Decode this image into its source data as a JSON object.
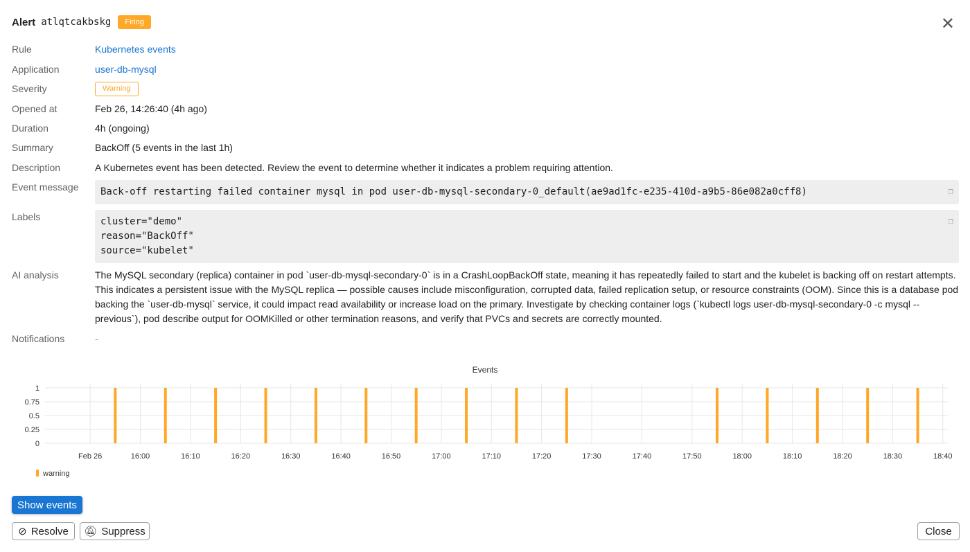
{
  "header": {
    "title": "Alert",
    "alert_id": "atlqtcakbskg",
    "status": "Firing",
    "status_color": "#ffa726"
  },
  "fields": {
    "rule": {
      "label": "Rule",
      "value": "Kubernetes events"
    },
    "application": {
      "label": "Application",
      "value": "user-db-mysql"
    },
    "severity": {
      "label": "Severity",
      "value": "Warning"
    },
    "opened_at": {
      "label": "Opened at",
      "value": "Feb 26, 14:26:40 (4h ago)"
    },
    "duration": {
      "label": "Duration",
      "value": "4h (ongoing)"
    },
    "summary": {
      "label": "Summary",
      "value": "BackOff (5 events in the last 1h)"
    },
    "description": {
      "label": "Description",
      "value": "A Kubernetes event has been detected. Review the event to determine whether it indicates a problem requiring attention."
    },
    "event_message": {
      "label": "Event message",
      "value": "Back-off restarting failed container mysql in pod user-db-mysql-secondary-0_default(ae9ad1fc-e235-410d-a9b5-86e082a0cff8)"
    },
    "labels": {
      "label": "Labels",
      "value": "cluster=\"demo\"\nreason=\"BackOff\"\nsource=\"kubelet\""
    },
    "ai_analysis": {
      "label": "AI analysis",
      "value": "The MySQL secondary (replica) container in pod `user-db-mysql-secondary-0` is in a CrashLoopBackOff state, meaning it has repeatedly failed to start and the kubelet is backing off on restart attempts. This indicates a persistent issue with the MySQL replica — possible causes include misconfiguration, corrupted data, failed replication setup, or resource constraints (OOM). Since this is a database pod backing the `user-db-mysql` service, it could impact read availability or increase load on the primary. Investigate by checking container logs (`kubectl logs user-db-mysql-secondary-0 -c mysql --previous`), pod describe output for OOMKilled or other termination reasons, and verify that PVCs and secrets are correctly mounted."
    },
    "notifications": {
      "label": "Notifications",
      "value": "-"
    }
  },
  "chart_data": {
    "type": "bar",
    "title": "Events",
    "x_ticks": [
      "Feb 26",
      "16:00",
      "16:10",
      "16:20",
      "16:30",
      "16:40",
      "16:50",
      "17:00",
      "17:10",
      "17:20",
      "17:30",
      "17:40",
      "17:50",
      "18:00",
      "18:10",
      "18:20",
      "18:30",
      "18:40"
    ],
    "x_tick_times": [
      "15:50",
      "16:00",
      "16:10",
      "16:20",
      "16:30",
      "16:40",
      "16:50",
      "17:00",
      "17:10",
      "17:20",
      "17:30",
      "17:40",
      "17:50",
      "18:00",
      "18:10",
      "18:20",
      "18:30",
      "18:40"
    ],
    "xlim": [
      "15:41",
      "18:41"
    ],
    "y_ticks": [
      "0",
      "0.25",
      "0.5",
      "0.75",
      "1"
    ],
    "ylim": [
      0,
      1
    ],
    "grid": true,
    "legend_position": "bottom-left",
    "series": [
      {
        "name": "warning",
        "color": "#ffa726",
        "x": [
          "15:55",
          "16:05",
          "16:15",
          "16:25",
          "16:35",
          "16:45",
          "16:55",
          "17:05",
          "17:15",
          "17:25",
          "17:55",
          "18:05",
          "18:15",
          "18:25",
          "18:35"
        ],
        "values": [
          1,
          1,
          1,
          1,
          1,
          1,
          1,
          1,
          1,
          1,
          1,
          1,
          1,
          1,
          1
        ]
      }
    ]
  },
  "buttons": {
    "show_events": "Show events",
    "resolve": "Resolve",
    "suppress": "Suppress",
    "close": "Close"
  }
}
